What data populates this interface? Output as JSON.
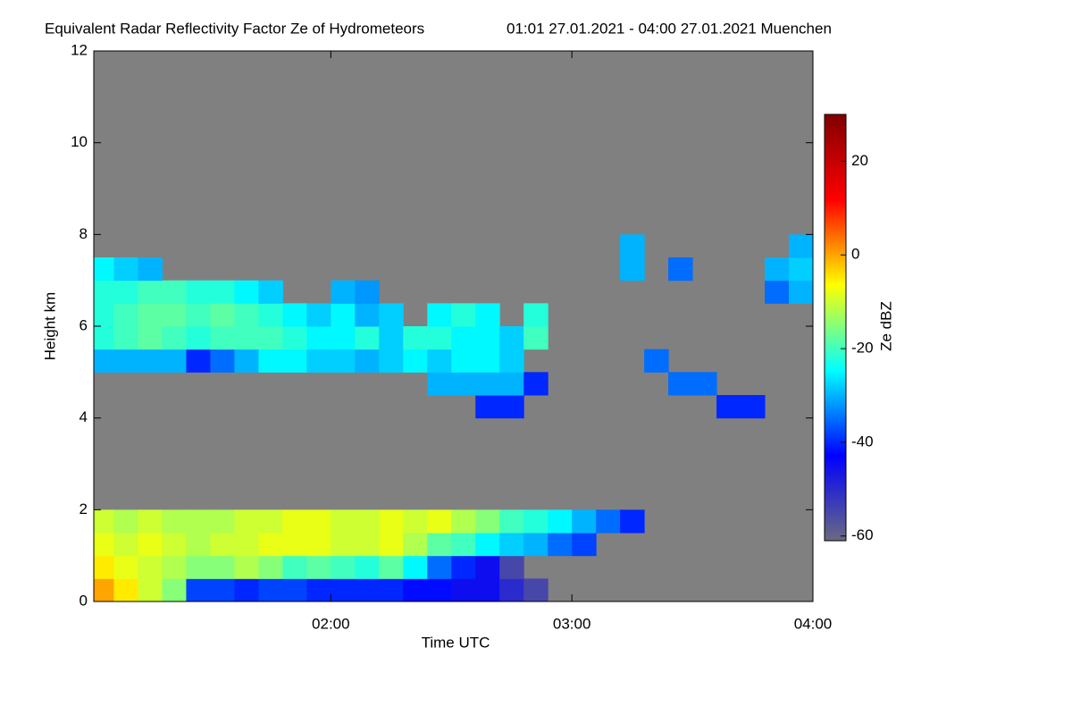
{
  "chart_data": {
    "type": "heatmap",
    "title": "Equivalent Radar Reflectivity Factor Ze of Hydrometeors",
    "subtitle": "01:01 27.01.2021 - 04:00 27.01.2021 Muenchen",
    "x_label": "Time UTC",
    "y_label": "Height km",
    "colorbar_label": "Ze dBZ",
    "xlim": [
      1.0167,
      4.0
    ],
    "xticks": [
      {
        "value": 2,
        "label": "02:00"
      },
      {
        "value": 3,
        "label": "03:00"
      },
      {
        "value": 4,
        "label": "04:00"
      }
    ],
    "ylim": [
      0,
      12
    ],
    "yticks": [
      0,
      2,
      4,
      6,
      8,
      10,
      12
    ],
    "clim": [
      -61,
      30
    ],
    "cticks": [
      -60,
      -40,
      -20,
      0,
      20
    ],
    "colormap": [
      "#6a6a80",
      "#0000ff",
      "#00ffff",
      "#ffff00",
      "#ff0000",
      "#800000"
    ],
    "background": "#808080",
    "x": [
      1.05,
      1.15,
      1.25,
      1.35,
      1.45,
      1.55,
      1.65,
      1.75,
      1.85,
      1.95,
      2.05,
      2.15,
      2.25,
      2.35,
      2.45,
      2.55,
      2.65,
      2.75,
      2.85,
      2.95,
      3.05,
      3.15,
      3.25,
      3.35,
      3.45,
      3.55,
      3.65,
      3.75,
      3.85,
      3.95
    ],
    "y": [
      0.25,
      0.75,
      1.25,
      1.75,
      2.25,
      2.75,
      3.25,
      3.75,
      4.25,
      4.75,
      5.25,
      5.75,
      6.25,
      6.75,
      7.25,
      7.75
    ],
    "values": [
      [
        0,
        -5,
        -10,
        -15,
        -38,
        -38,
        -40,
        -38,
        -38,
        -40,
        -40,
        -40,
        -40,
        -42,
        -42,
        -45,
        -45,
        -50,
        -55,
        null,
        null,
        null,
        null,
        null,
        null,
        null,
        null,
        null,
        null,
        null
      ],
      [
        -5,
        -8,
        -10,
        -12,
        -15,
        -15,
        -12,
        -15,
        -20,
        -18,
        -20,
        -22,
        -18,
        -25,
        -35,
        -40,
        -45,
        -55,
        null,
        null,
        null,
        null,
        null,
        null,
        null,
        null,
        null,
        null,
        null,
        null
      ],
      [
        -8,
        -10,
        -8,
        -10,
        -12,
        -10,
        -10,
        -8,
        -8,
        -8,
        -10,
        -10,
        -8,
        -12,
        -18,
        -20,
        -25,
        -28,
        -30,
        -35,
        -38,
        null,
        null,
        null,
        null,
        null,
        null,
        null,
        null,
        null
      ],
      [
        -10,
        -12,
        -10,
        -12,
        -12,
        -12,
        -10,
        -10,
        -8,
        -8,
        -10,
        -10,
        -8,
        -10,
        -8,
        -12,
        -15,
        -20,
        -22,
        -25,
        -30,
        -35,
        -40,
        null,
        null,
        null,
        null,
        null,
        null,
        null
      ],
      [
        null,
        null,
        null,
        null,
        null,
        null,
        null,
        null,
        null,
        null,
        null,
        null,
        null,
        null,
        null,
        null,
        null,
        null,
        null,
        null,
        null,
        null,
        null,
        null,
        null,
        null,
        null,
        null,
        null,
        null
      ],
      [
        null,
        null,
        null,
        null,
        null,
        null,
        null,
        null,
        null,
        null,
        null,
        null,
        null,
        null,
        null,
        null,
        null,
        null,
        null,
        null,
        null,
        null,
        null,
        null,
        null,
        null,
        null,
        null,
        null,
        null
      ],
      [
        null,
        null,
        null,
        null,
        null,
        null,
        null,
        null,
        null,
        null,
        null,
        null,
        null,
        null,
        null,
        null,
        null,
        null,
        null,
        null,
        null,
        null,
        null,
        null,
        null,
        null,
        null,
        null,
        null,
        null
      ],
      [
        null,
        null,
        null,
        null,
        null,
        null,
        null,
        null,
        null,
        null,
        null,
        null,
        null,
        null,
        null,
        null,
        null,
        null,
        null,
        null,
        null,
        null,
        null,
        null,
        null,
        null,
        null,
        null,
        null,
        null
      ],
      [
        null,
        null,
        null,
        null,
        null,
        null,
        null,
        null,
        null,
        null,
        null,
        null,
        null,
        null,
        null,
        null,
        -40,
        -40,
        null,
        null,
        null,
        null,
        null,
        null,
        null,
        null,
        -40,
        -40,
        null,
        null
      ],
      [
        null,
        null,
        null,
        null,
        null,
        null,
        null,
        null,
        null,
        null,
        null,
        null,
        null,
        null,
        -30,
        -30,
        -30,
        -30,
        -40,
        null,
        null,
        null,
        null,
        null,
        -35,
        -35,
        null,
        null,
        null,
        null
      ],
      [
        -30,
        -30,
        -30,
        -30,
        -40,
        -35,
        -30,
        -25,
        -25,
        -28,
        -28,
        -30,
        -28,
        -25,
        -28,
        -25,
        -25,
        -28,
        null,
        null,
        null,
        null,
        null,
        -35,
        null,
        null,
        null,
        null,
        null,
        null
      ],
      [
        -22,
        -20,
        -18,
        -20,
        -22,
        -20,
        -20,
        -20,
        -22,
        -25,
        -25,
        -22,
        -28,
        -22,
        -22,
        -25,
        -25,
        -28,
        -20,
        null,
        null,
        null,
        null,
        null,
        null,
        null,
        null,
        null,
        null,
        null
      ],
      [
        -22,
        -20,
        -18,
        -18,
        -20,
        -18,
        -20,
        -22,
        -25,
        -28,
        -25,
        -30,
        -28,
        null,
        -25,
        -22,
        -25,
        null,
        -22,
        null,
        null,
        null,
        null,
        null,
        null,
        null,
        null,
        null,
        null,
        null
      ],
      [
        -22,
        -22,
        -20,
        -20,
        -22,
        -22,
        -25,
        -28,
        null,
        null,
        -30,
        -32,
        null,
        null,
        null,
        null,
        null,
        null,
        null,
        null,
        null,
        null,
        null,
        null,
        null,
        null,
        null,
        null,
        -35,
        -30
      ],
      [
        -25,
        -28,
        -30,
        null,
        null,
        null,
        null,
        null,
        null,
        null,
        null,
        null,
        null,
        null,
        null,
        null,
        null,
        null,
        null,
        null,
        null,
        null,
        -30,
        null,
        -35,
        null,
        null,
        null,
        -30,
        -28
      ],
      [
        null,
        null,
        null,
        null,
        null,
        null,
        null,
        null,
        null,
        null,
        null,
        null,
        null,
        null,
        null,
        null,
        null,
        null,
        null,
        null,
        null,
        null,
        -30,
        null,
        null,
        null,
        null,
        null,
        null,
        -30
      ]
    ]
  }
}
